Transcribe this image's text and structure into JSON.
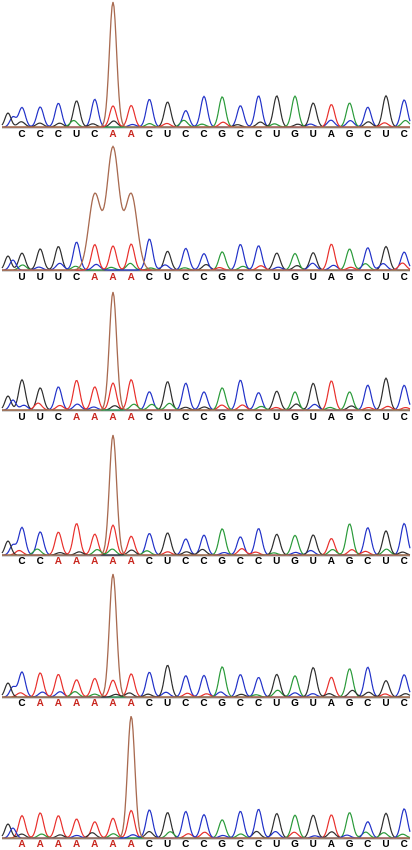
{
  "colors": {
    "A": "#e8302c",
    "C": "#2232c8",
    "G": "#2a9a3a",
    "T": "#2e2e2e",
    "spike": "#a86a50",
    "baseline": "#8a8a8a",
    "label_default": "#000000",
    "label_highlight": "#c8261e"
  },
  "chart_data": [
    {
      "type": "chromatogram",
      "bases": [
        "C",
        "C",
        "C",
        "U",
        "C",
        "A",
        "A",
        "C",
        "U",
        "C",
        "C",
        "G",
        "C",
        "C",
        "U",
        "G",
        "U",
        "A",
        "G",
        "C",
        "U",
        "C"
      ],
      "highlighted": [
        5,
        6
      ],
      "spike_positions": [
        5
      ]
    },
    {
      "type": "chromatogram",
      "bases": [
        "U",
        "U",
        "U",
        "C",
        "A",
        "A",
        "A",
        "C",
        "U",
        "C",
        "C",
        "G",
        "C",
        "C",
        "U",
        "G",
        "U",
        "A",
        "G",
        "C",
        "U",
        "C"
      ],
      "highlighted": [
        4,
        5,
        6
      ],
      "spike_positions": [
        4,
        5,
        6
      ]
    },
    {
      "type": "chromatogram",
      "bases": [
        "U",
        "U",
        "C",
        "A",
        "A",
        "A",
        "A",
        "C",
        "U",
        "C",
        "C",
        "G",
        "C",
        "C",
        "U",
        "G",
        "U",
        "A",
        "G",
        "C",
        "U",
        "C"
      ],
      "highlighted": [
        3,
        4,
        5,
        6
      ],
      "spike_positions": [
        5
      ]
    },
    {
      "type": "chromatogram",
      "bases": [
        "C",
        "C",
        "A",
        "A",
        "A",
        "A",
        "A",
        "C",
        "U",
        "C",
        "C",
        "G",
        "C",
        "C",
        "U",
        "G",
        "U",
        "A",
        "G",
        "C",
        "U",
        "C"
      ],
      "highlighted": [
        2,
        3,
        4,
        5,
        6
      ],
      "spike_positions": [
        5
      ]
    },
    {
      "type": "chromatogram",
      "bases": [
        "C",
        "A",
        "A",
        "A",
        "A",
        "A",
        "A",
        "C",
        "U",
        "C",
        "C",
        "G",
        "C",
        "C",
        "U",
        "G",
        "U",
        "A",
        "G",
        "C",
        "U",
        "C"
      ],
      "highlighted": [
        1,
        2,
        3,
        4,
        5,
        6
      ],
      "spike_positions": [
        5
      ]
    },
    {
      "type": "chromatogram",
      "bases": [
        "A",
        "A",
        "A",
        "A",
        "A",
        "A",
        "A",
        "C",
        "U",
        "C",
        "C",
        "G",
        "C",
        "C",
        "U",
        "G",
        "U",
        "A",
        "G",
        "C",
        "U",
        "C"
      ],
      "highlighted": [
        0,
        1,
        2,
        3,
        4,
        5,
        6
      ],
      "spike_positions": [
        6
      ]
    }
  ]
}
